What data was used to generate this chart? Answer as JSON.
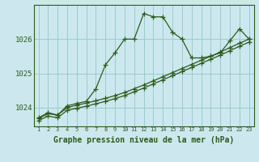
{
  "bg_color": "#cce8ee",
  "grid_color": "#99cccc",
  "line_color": "#2d5a1b",
  "xlabel": "Graphe pression niveau de la mer (hPa)",
  "xlabel_fontsize": 7,
  "yticks": [
    1024,
    1025,
    1026
  ],
  "xlim": [
    0.5,
    23.5
  ],
  "ylim": [
    1023.45,
    1027.0
  ],
  "xtick_labels": [
    "1",
    "2",
    "3",
    "4",
    "5",
    "6",
    "7",
    "8",
    "9",
    "10",
    "11",
    "12",
    "13",
    "14",
    "15",
    "16",
    "17",
    "18",
    "19",
    "20",
    "21",
    "22",
    "23"
  ],
  "series1_x": [
    1,
    2,
    3,
    4,
    5,
    6,
    7,
    8,
    9,
    10,
    11,
    12,
    13,
    14,
    15,
    16,
    17,
    18,
    19,
    20,
    21,
    22,
    23
  ],
  "series1_y": [
    1023.7,
    1023.85,
    1023.78,
    1024.05,
    1024.12,
    1024.18,
    1024.55,
    1025.25,
    1025.6,
    1026.0,
    1026.0,
    1026.75,
    1026.65,
    1026.65,
    1026.2,
    1026.0,
    1025.45,
    1025.45,
    1025.5,
    1025.6,
    1025.95,
    1026.3,
    1026.0
  ],
  "series2_x": [
    1,
    2,
    3,
    4,
    5,
    6,
    7,
    8,
    9,
    10,
    11,
    12,
    13,
    14,
    15,
    16,
    17,
    18,
    19,
    20,
    21,
    22,
    23
  ],
  "series2_y": [
    1023.68,
    1023.82,
    1023.78,
    1024.0,
    1024.07,
    1024.13,
    1024.2,
    1024.27,
    1024.35,
    1024.44,
    1024.55,
    1024.66,
    1024.78,
    1024.9,
    1025.02,
    1025.14,
    1025.26,
    1025.38,
    1025.5,
    1025.62,
    1025.75,
    1025.88,
    1026.0
  ],
  "series3_x": [
    1,
    2,
    3,
    4,
    5,
    6,
    7,
    8,
    9,
    10,
    11,
    12,
    13,
    14,
    15,
    16,
    17,
    18,
    19,
    20,
    21,
    22,
    23
  ],
  "series3_y": [
    1023.62,
    1023.75,
    1023.7,
    1023.92,
    1023.98,
    1024.04,
    1024.11,
    1024.18,
    1024.26,
    1024.35,
    1024.46,
    1024.57,
    1024.69,
    1024.81,
    1024.93,
    1025.05,
    1025.17,
    1025.29,
    1025.41,
    1025.53,
    1025.66,
    1025.79,
    1025.91
  ]
}
